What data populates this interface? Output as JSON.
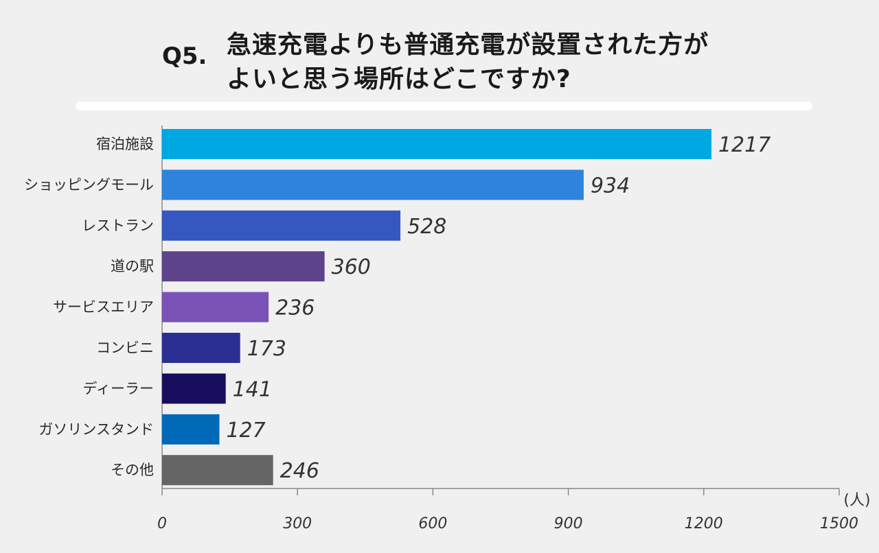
{
  "question": {
    "number": "Q5.",
    "line1": "急速充電よりも普通充電が設置された方が",
    "line2": "よいと思う場所はどこですか?"
  },
  "chart_data": {
    "type": "bar",
    "orientation": "horizontal",
    "title": "Q5. 急速充電よりも普通充電が設置された方がよいと思う場所はどこですか?",
    "categories": [
      "宿泊施設",
      "ショッピングモール",
      "レストラン",
      "道の駅",
      "サービスエリア",
      "コンビニ",
      "ディーラー",
      "ガソリンスタンド",
      "その他"
    ],
    "values": [
      1217,
      934,
      528,
      360,
      236,
      173,
      141,
      127,
      246
    ],
    "colors": [
      "#00a8e2",
      "#2e84dd",
      "#3458c0",
      "#5c438a",
      "#7b52b5",
      "#2b2f93",
      "#170e5e",
      "#0069b7",
      "#656565"
    ],
    "xlim": [
      0,
      1500
    ],
    "xticks": [
      0,
      300,
      600,
      900,
      1200,
      1500
    ],
    "unit": "(人)"
  }
}
